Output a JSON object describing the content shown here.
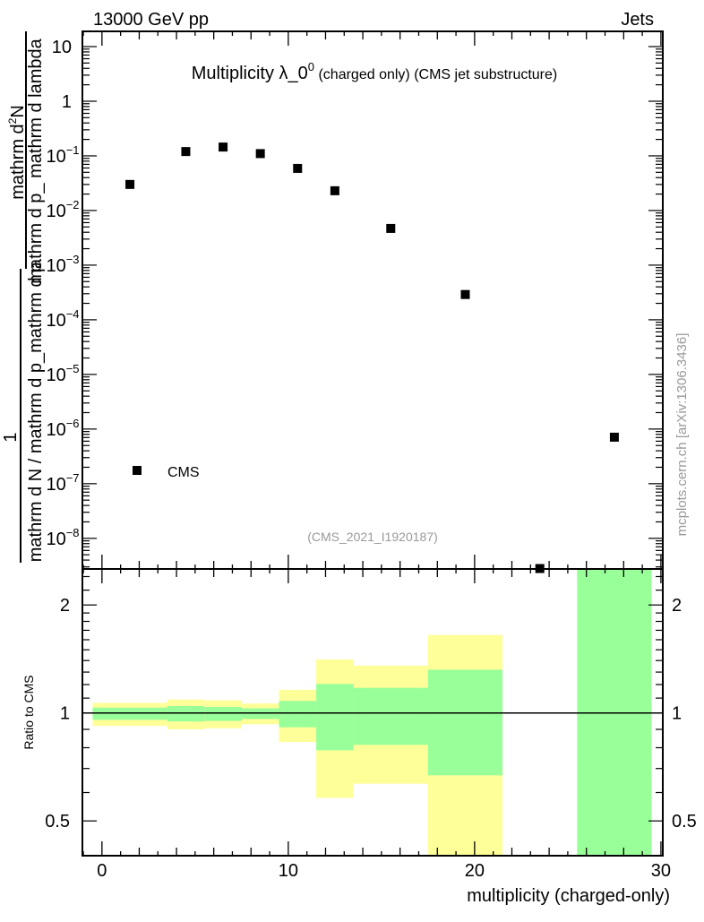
{
  "header": {
    "left": "13000 GeV pp",
    "right": "Jets"
  },
  "side_label": "mcplots.cern.ch [arXiv:1306.3436]",
  "analysis_id": "(CMS_2021_I1920187)",
  "chart_data": [
    {
      "type": "scatter",
      "title_main": "Multiplicity λ_0",
      "title_sup": "0",
      "title_small": " (charged only) (CMS jet substructure)",
      "ylabel_upper_num": "mathrm d",
      "ylabel_upper_num_sup": "2",
      "ylabel_upper_num_end": "N",
      "ylabel_upper_den": "mathrm d p_ mathrm d lambda",
      "ylabel_lower_num": "1",
      "ylabel_lower_den": "mathrm d N / mathrm d p_mathrm d p",
      "yscale": "log",
      "ylim": [
        2.75e-09,
        19
      ],
      "xlim": [
        -1.05,
        30.1
      ],
      "ytick_labels": [
        {
          "value": 10,
          "base": "10",
          "exp": ""
        },
        {
          "value": 1,
          "base": "1",
          "exp": ""
        },
        {
          "value": 0.1,
          "base": "10",
          "exp": "−1"
        },
        {
          "value": 0.01,
          "base": "10",
          "exp": "−2"
        },
        {
          "value": 0.001,
          "base": "10",
          "exp": "−3"
        },
        {
          "value": 0.0001,
          "base": "10",
          "exp": "−4"
        },
        {
          "value": 1e-05,
          "base": "10",
          "exp": "−5"
        },
        {
          "value": 1e-06,
          "base": "10",
          "exp": "−6"
        },
        {
          "value": 1e-07,
          "base": "10",
          "exp": "−7"
        },
        {
          "value": 1e-08,
          "base": "10",
          "exp": "−8"
        }
      ],
      "series": [
        {
          "name": "CMS",
          "color": "#000000",
          "x": [
            1.5,
            4.5,
            6.5,
            8.5,
            10.5,
            12.5,
            15.5,
            19.5,
            23.5,
            27.5
          ],
          "y": [
            0.03,
            0.12,
            0.145,
            0.11,
            0.059,
            0.023,
            0.0047,
            0.00029,
            2.8e-09,
            7.1e-07
          ]
        }
      ],
      "legend": {
        "position": "bottom-left",
        "entries": [
          "CMS"
        ]
      }
    },
    {
      "type": "area",
      "ylabel": "Ratio to CMS",
      "xlabel": "multiplicity (charged-only)",
      "yscale": "log",
      "ylim": [
        0.4,
        2.52
      ],
      "xlim": [
        -1.05,
        30.1
      ],
      "xtick_labels": [
        "0",
        "10",
        "20",
        "30"
      ],
      "xticks": [
        0,
        10,
        20,
        30
      ],
      "ytick_labels": [
        "2",
        "1",
        "0.5"
      ],
      "yticks": [
        2,
        1,
        0.5
      ],
      "reference_line": 1,
      "colors": {
        "yellow": "#ffff99",
        "green": "#99ff99"
      },
      "bins": [
        {
          "lo": -0.5,
          "hi": 3.5,
          "yellow": [
            0.92,
            1.067
          ],
          "green": [
            0.957,
            1.035
          ]
        },
        {
          "lo": 3.5,
          "hi": 5.5,
          "yellow": [
            0.9,
            1.09
          ],
          "green": [
            0.947,
            1.045
          ]
        },
        {
          "lo": 5.5,
          "hi": 7.5,
          "yellow": [
            0.906,
            1.085
          ],
          "green": [
            0.95,
            1.039
          ]
        },
        {
          "lo": 7.5,
          "hi": 9.5,
          "yellow": [
            0.93,
            1.063
          ],
          "green": [
            0.962,
            1.03
          ]
        },
        {
          "lo": 9.5,
          "hi": 11.5,
          "yellow": [
            0.83,
            1.16
          ],
          "green": [
            0.912,
            1.08
          ]
        },
        {
          "lo": 11.5,
          "hi": 13.5,
          "yellow": [
            0.58,
            1.41
          ],
          "green": [
            0.787,
            1.205
          ]
        },
        {
          "lo": 13.5,
          "hi": 17.5,
          "yellow": [
            0.635,
            1.355
          ],
          "green": [
            0.815,
            1.175
          ]
        },
        {
          "lo": 17.5,
          "hi": 21.5,
          "yellow": [
            0.3,
            1.65
          ],
          "green": [
            0.67,
            1.32
          ]
        },
        {
          "lo": 25.5,
          "hi": 29.5,
          "yellow": null,
          "green": [
            0.3,
            3.0
          ]
        }
      ]
    }
  ]
}
